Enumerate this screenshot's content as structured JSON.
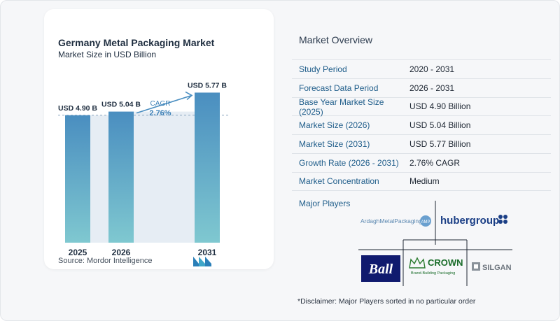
{
  "chart_data": {
    "type": "bar",
    "title": "Germany Metal Packaging Market",
    "subtitle": "Market Size in USD Billion",
    "categories": [
      "2025",
      "2026",
      "2031"
    ],
    "values": [
      4.9,
      5.04,
      5.77
    ],
    "data_labels": [
      "USD 4.90 B",
      "USD 5.04 B",
      "USD 5.77 B"
    ],
    "annotation": {
      "label": "CAGR",
      "value": "2.76%"
    },
    "ylim": [
      0,
      6.4
    ],
    "grid": false,
    "colors": {
      "bar_top": "#4a8ec0",
      "bar_bottom": "#7fc8d0",
      "band": "#e6edf4",
      "arrow": "#4b8fc1"
    }
  },
  "source": "Source:  Mordor Intelligence",
  "overview": {
    "title": "Market Overview",
    "rows": [
      {
        "label": "Study Period",
        "value": "2020 - 2031"
      },
      {
        "label": "Forecast Data Period",
        "value": "2026 - 2031"
      },
      {
        "label": "Base Year Market Size (2025)",
        "value": "USD 4.90 Billion"
      },
      {
        "label": "Market Size (2026)",
        "value": "USD 5.04 Billion"
      },
      {
        "label": "Market Size (2031)",
        "value": "USD 5.77 Billion"
      },
      {
        "label": "Growth Rate (2026 - 2031)",
        "value": "2.76% CAGR"
      },
      {
        "label": "Market Concentration",
        "value": "Medium"
      }
    ],
    "players_title": "Major Players",
    "players": {
      "ardagh": "ArdaghMetalPackaging",
      "ardagh_mark": "AMP",
      "huber": "hubergroup",
      "ball": "Ball",
      "crown": "CROWN",
      "crown_tagline": "Brand-Building Packaging",
      "silgan": "SILGAN"
    },
    "disclaimer": "*Disclaimer: Major Players sorted in no particular order"
  }
}
